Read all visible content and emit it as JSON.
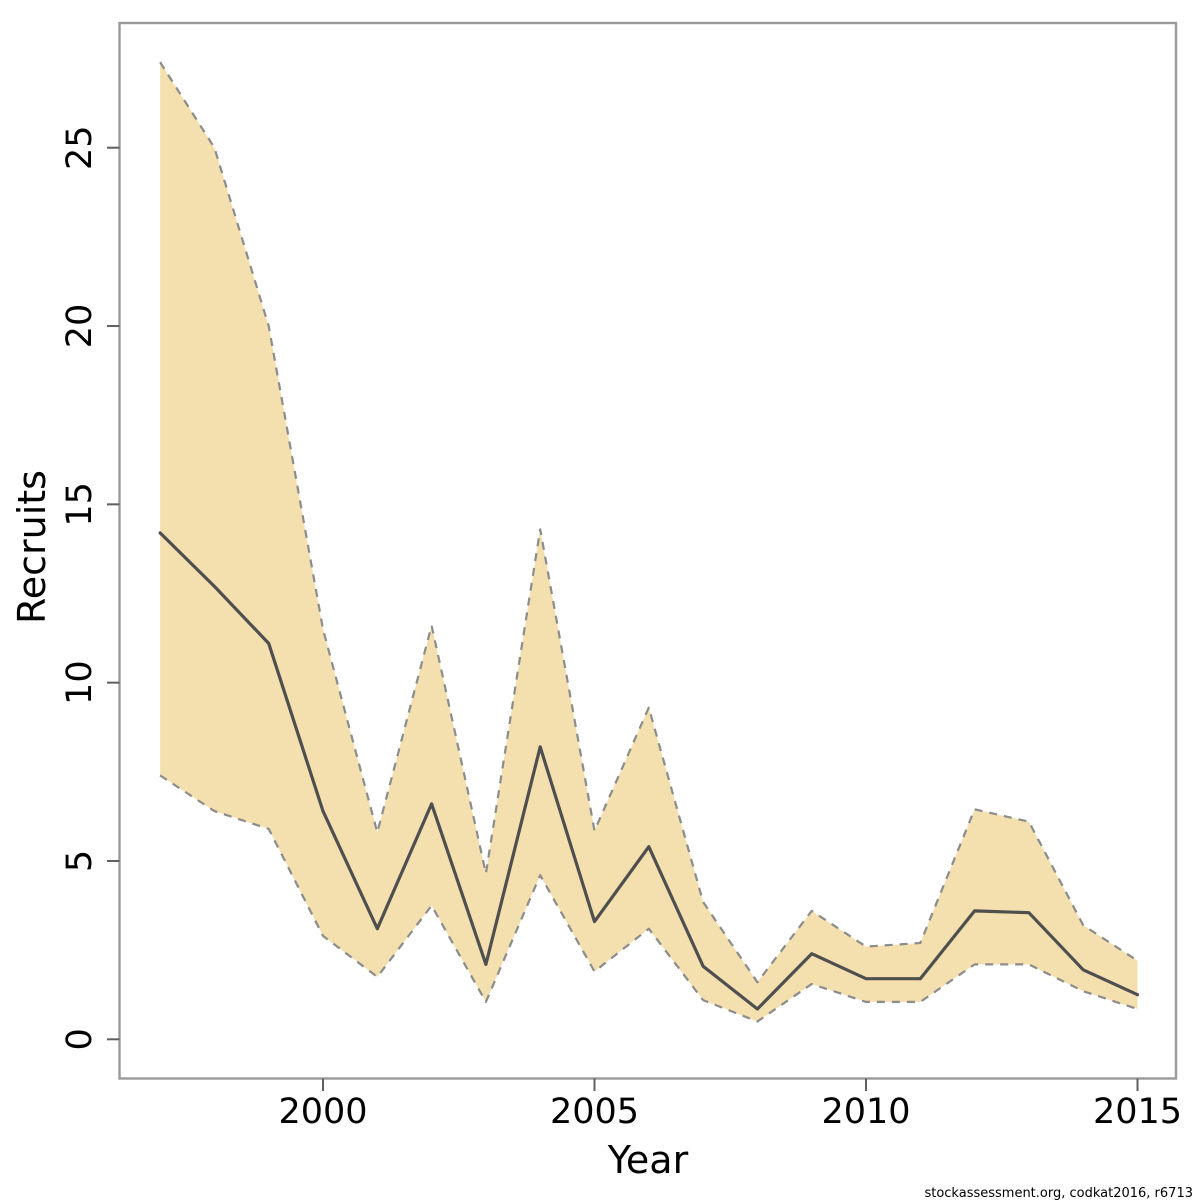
{
  "chart_data": {
    "type": "line",
    "title": "",
    "xlabel": "Year",
    "ylabel": "Recruits",
    "x": [
      1997,
      1998,
      1999,
      2000,
      2001,
      2002,
      2003,
      2004,
      2005,
      2006,
      2007,
      2008,
      2009,
      2010,
      2011,
      2012,
      2013,
      2014,
      2015
    ],
    "series": [
      {
        "name": "median",
        "values": [
          14.2,
          12.7,
          11.1,
          6.4,
          3.1,
          6.6,
          2.1,
          8.2,
          3.3,
          5.4,
          2.05,
          0.85,
          2.4,
          1.7,
          1.7,
          3.6,
          3.55,
          1.95,
          1.25
        ]
      },
      {
        "name": "lower_ci",
        "values": [
          7.4,
          6.4,
          5.9,
          2.9,
          1.75,
          3.75,
          1.05,
          4.6,
          1.9,
          3.1,
          1.1,
          0.5,
          1.55,
          1.05,
          1.05,
          2.1,
          2.1,
          1.35,
          0.85
        ]
      },
      {
        "name": "upper_ci",
        "values": [
          27.4,
          25.0,
          20.0,
          11.5,
          5.8,
          11.6,
          4.65,
          14.3,
          5.85,
          9.3,
          3.85,
          1.6,
          3.6,
          2.6,
          2.7,
          6.45,
          6.1,
          3.2,
          2.2
        ]
      }
    ],
    "band": {
      "lower_series": "lower_ci",
      "upper_series": "upper_ci",
      "style": "shaded region with dashed borders"
    },
    "xticks": [
      2000,
      2005,
      2010,
      2015
    ],
    "yticks": [
      0,
      5,
      10,
      15,
      20,
      25
    ],
    "xlim": [
      1996.3,
      2015.7
    ],
    "ylim": [
      -1.0,
      28.5
    ],
    "grid": false,
    "legend": "none",
    "colors": {
      "median_line": "#4f4f4f",
      "ci_line": "#8c8c8c",
      "band_fill": "#f4dfae",
      "axis_box": "#9a9a9a",
      "tick": "#5f5f5f",
      "text": "#000000"
    },
    "watermark": "stockassessment.org, codkat2016, r6713"
  }
}
